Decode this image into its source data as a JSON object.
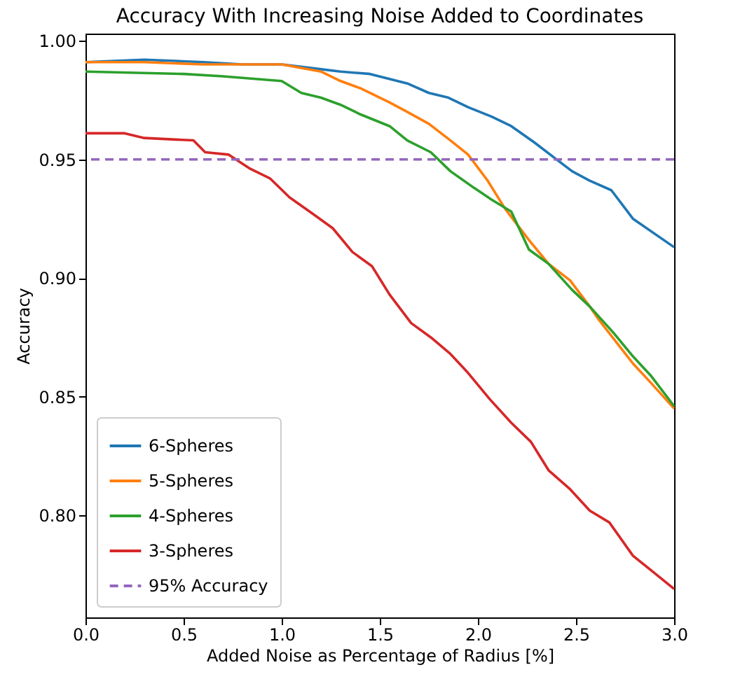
{
  "chart_data": {
    "type": "line",
    "title": "Accuracy With Increasing Noise Added to Coordinates",
    "xlabel": "Added Noise as Percentage of Radius [%]",
    "ylabel": "Accuracy",
    "xlim": [
      0,
      3.0
    ],
    "ylim": [
      0.757,
      1.003
    ],
    "xticks": [
      {
        "value": 0,
        "label": "0.0"
      },
      0.5,
      {
        "value": 1,
        "label": "1.0"
      },
      1.5,
      {
        "value": 2,
        "label": "2.0"
      },
      2.5,
      {
        "value": 3,
        "label": "3.0"
      }
    ],
    "yticks": [
      {
        "value": 0.8,
        "label": "0.80"
      },
      0.85,
      {
        "value": 0.9,
        "label": "0.90"
      },
      0.95,
      {
        "value": 1,
        "label": "1.00"
      }
    ],
    "grid": false,
    "legend": "bottom left",
    "line_style": "solid",
    "marker": "none",
    "series": [
      {
        "name": "6-Spheres",
        "color": "#1f77b4",
        "x": [
          0,
          0.3,
          0.6,
          0.8,
          1.0,
          1.2,
          1.3,
          1.45,
          1.64,
          1.75,
          1.85,
          1.95,
          2.07,
          2.17,
          2.29,
          2.4,
          2.48,
          2.57,
          2.68,
          2.79,
          3.0
        ],
        "values": [
          0.991,
          0.992,
          0.991,
          0.99,
          0.99,
          0.988,
          0.987,
          0.986,
          0.982,
          0.978,
          0.976,
          0.972,
          0.968,
          0.964,
          0.957,
          0.95,
          0.945,
          0.941,
          0.937,
          0.925,
          0.913
        ]
      },
      {
        "name": "5-Spheres",
        "color": "#ff7f0e",
        "x": [
          0,
          0.3,
          0.6,
          0.9,
          1.0,
          1.2,
          1.3,
          1.4,
          1.55,
          1.64,
          1.75,
          1.86,
          1.95,
          2.05,
          2.14,
          2.26,
          2.36,
          2.47,
          2.57,
          2.62,
          2.79,
          2.88,
          3.0
        ],
        "values": [
          0.991,
          0.991,
          0.99,
          0.99,
          0.99,
          0.987,
          0.983,
          0.98,
          0.974,
          0.97,
          0.965,
          0.958,
          0.952,
          0.941,
          0.929,
          0.916,
          0.906,
          0.899,
          0.888,
          0.882,
          0.864,
          0.856,
          0.845
        ]
      },
      {
        "name": "4-Spheres",
        "color": "#2ca02c",
        "x": [
          0,
          0.5,
          0.7,
          1.0,
          1.1,
          1.2,
          1.3,
          1.4,
          1.55,
          1.64,
          1.76,
          1.86,
          1.98,
          2.07,
          2.17,
          2.26,
          2.36,
          2.48,
          2.57,
          2.69,
          2.79,
          2.88,
          3.0
        ],
        "values": [
          0.987,
          0.986,
          0.985,
          0.983,
          0.978,
          0.976,
          0.973,
          0.969,
          0.964,
          0.958,
          0.953,
          0.945,
          0.938,
          0.933,
          0.928,
          0.912,
          0.906,
          0.895,
          0.888,
          0.877,
          0.867,
          0.859,
          0.846
        ]
      },
      {
        "name": "3-Spheres",
        "color": "#d62728",
        "x": [
          0,
          0.2,
          0.3,
          0.55,
          0.61,
          0.73,
          0.84,
          0.94,
          1.04,
          1.16,
          1.26,
          1.36,
          1.46,
          1.55,
          1.66,
          1.76,
          1.86,
          1.95,
          2.06,
          2.17,
          2.27,
          2.36,
          2.47,
          2.57,
          2.67,
          2.79,
          2.88,
          3.0
        ],
        "values": [
          0.961,
          0.961,
          0.959,
          0.958,
          0.953,
          0.952,
          0.946,
          0.942,
          0.934,
          0.927,
          0.921,
          0.911,
          0.905,
          0.893,
          0.881,
          0.875,
          0.868,
          0.86,
          0.849,
          0.839,
          0.831,
          0.819,
          0.811,
          0.802,
          0.797,
          0.783,
          0.777,
          0.769
        ]
      }
    ],
    "ref_lines": [
      {
        "axis": "y",
        "value": 0.95,
        "label": "95% Accuracy",
        "color": "#9467bd",
        "line_style": "dashed"
      }
    ]
  }
}
